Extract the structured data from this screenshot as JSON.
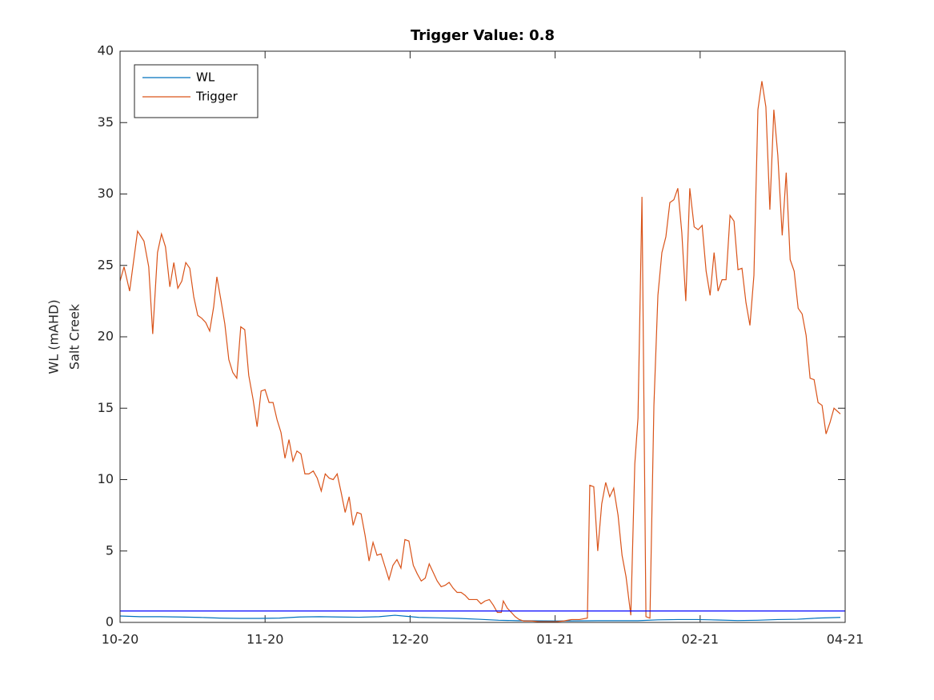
{
  "chart_data": {
    "type": "line",
    "title": "Trigger Value: 0.8",
    "ylabel": [
      "WL (mAHD)",
      "Salt Creek"
    ],
    "xlim": [
      0,
      182
    ],
    "xticks": [
      {
        "value": 0,
        "label": "10-20"
      },
      {
        "value": 36.4,
        "label": "11-20"
      },
      {
        "value": 72.8,
        "label": "12-20"
      },
      {
        "value": 109.2,
        "label": "01-21"
      },
      {
        "value": 145.6,
        "label": "02-21"
      },
      {
        "value": 182,
        "label": "04-21"
      }
    ],
    "ylim": [
      0,
      40
    ],
    "yticks": [
      0,
      5,
      10,
      15,
      20,
      25,
      30,
      35,
      40
    ],
    "grid": false,
    "legend": "top-left",
    "threshold": {
      "value": 0.8,
      "color": "#0000ff"
    },
    "series": [
      {
        "name": "WL",
        "color": "#0072bd",
        "x": [
          0,
          5,
          10,
          15,
          20,
          25,
          30,
          35,
          40,
          45,
          50,
          55,
          60,
          65,
          69,
          75,
          80,
          85,
          90,
          95,
          100,
          110,
          120,
          130,
          135,
          140,
          145,
          150,
          155,
          160,
          165,
          170,
          175,
          180.8
        ],
        "values": [
          0.45,
          0.4,
          0.4,
          0.38,
          0.35,
          0.3,
          0.28,
          0.28,
          0.3,
          0.38,
          0.4,
          0.38,
          0.36,
          0.4,
          0.5,
          0.35,
          0.32,
          0.28,
          0.22,
          0.15,
          0.12,
          0.1,
          0.12,
          0.12,
          0.18,
          0.2,
          0.2,
          0.17,
          0.13,
          0.15,
          0.2,
          0.22,
          0.3,
          0.35
        ]
      },
      {
        "name": "Trigger",
        "color": "#d95319",
        "x": [
          0,
          1,
          2.4,
          4.4,
          6,
          7.2,
          8.2,
          9.4,
          10.4,
          11.4,
          12.5,
          13.5,
          14.5,
          15.5,
          16.5,
          17.5,
          18.5,
          19.5,
          20.5,
          21.5,
          22.5,
          23.5,
          24.3,
          25.3,
          26.3,
          27.3,
          28.3,
          29.3,
          30.3,
          31.3,
          32.3,
          33.4,
          34.4,
          35.4,
          36.4,
          37.4,
          38.4,
          39.4,
          40.4,
          41.4,
          42.4,
          43.4,
          44.4,
          45.4,
          46.4,
          47.4,
          48.5,
          49.5,
          50.5,
          51.5,
          52.5,
          53.5,
          54.5,
          55.5,
          56.5,
          57.5,
          58.5,
          59.5,
          60.5,
          61.5,
          62.5,
          63.5,
          64.5,
          65.5,
          66.5,
          67.5,
          68.5,
          69.5,
          70.5,
          71.5,
          72.5,
          73.6,
          74.6,
          75.6,
          76.6,
          77.6,
          78.6,
          79.6,
          80.6,
          81.6,
          82.6,
          83.6,
          84.6,
          85.6,
          86.6,
          87.6,
          88.6,
          89.6,
          90.6,
          91.6,
          92.7,
          93.7,
          94.7,
          95.7,
          96.2,
          97.2,
          98.2,
          99.2,
          100.2,
          101.3,
          103.3,
          105.3,
          107.3,
          109.3,
          111.3,
          113.3,
          115.3,
          117.3,
          117.9,
          118.9,
          119.9,
          120.9,
          121.9,
          122.9,
          123.9,
          125,
          126,
          127,
          128.2,
          129.2,
          130,
          131,
          132,
          133,
          134,
          135,
          136,
          137,
          138,
          139,
          140,
          141,
          142,
          143,
          144.1,
          145.1,
          146.1,
          147.1,
          148.1,
          149.1,
          150.1,
          151.1,
          152.1,
          153.1,
          154.1,
          155.1,
          156.1,
          157.1,
          158.1,
          159.1,
          160.1,
          161.1,
          162.1,
          163.1,
          164.1,
          165.1,
          166.2,
          167.2,
          168.2,
          169.2,
          170.2,
          171.2,
          172.2,
          173.2,
          174.2,
          175.2,
          176.2,
          177.2,
          178.2,
          179.2,
          180.8
        ],
        "values": [
          23.9,
          24.9,
          23.2,
          27.4,
          26.7,
          24.9,
          20.2,
          25.9,
          27.2,
          26.3,
          23.5,
          25.2,
          23.4,
          23.9,
          25.2,
          24.8,
          22.8,
          21.5,
          21.3,
          21.0,
          20.4,
          22.1,
          24.2,
          22.6,
          20.9,
          18.4,
          17.5,
          17.1,
          20.7,
          20.5,
          17.3,
          15.6,
          13.7,
          16.2,
          16.3,
          15.4,
          15.4,
          14.2,
          13.3,
          11.5,
          12.8,
          11.3,
          12.0,
          11.8,
          10.4,
          10.4,
          10.6,
          10.1,
          9.2,
          10.4,
          10.1,
          10.0,
          10.4,
          9.1,
          7.7,
          8.8,
          6.8,
          7.7,
          7.6,
          6.1,
          4.3,
          5.6,
          4.7,
          4.8,
          3.9,
          3.0,
          4.0,
          4.4,
          3.8,
          5.8,
          5.7,
          4.0,
          3.4,
          2.9,
          3.1,
          4.1,
          3.5,
          2.9,
          2.5,
          2.6,
          2.8,
          2.4,
          2.1,
          2.1,
          1.9,
          1.6,
          1.6,
          1.6,
          1.3,
          1.5,
          1.6,
          1.2,
          0.7,
          0.7,
          1.5,
          1.0,
          0.7,
          0.4,
          0.2,
          0.1,
          0.1,
          0.05,
          0.05,
          0.05,
          0.1,
          0.2,
          0.2,
          0.3,
          9.6,
          9.5,
          5.0,
          8.3,
          9.8,
          8.8,
          9.4,
          7.5,
          4.7,
          3.2,
          0.5,
          11.1,
          14.3,
          29.8,
          0.4,
          0.3,
          15.2,
          22.9,
          25.9,
          27.0,
          29.4,
          29.6,
          30.4,
          27.3,
          22.5,
          30.4,
          27.7,
          27.5,
          27.8,
          24.6,
          22.9,
          25.9,
          23.2,
          24.0,
          24.0,
          28.5,
          28.1,
          24.7,
          24.8,
          22.4,
          20.8,
          24.3,
          35.9,
          37.9,
          36.1,
          28.9,
          35.9,
          32.7,
          27.1,
          31.5,
          25.4,
          24.6,
          22.0,
          21.6,
          20.1,
          17.1,
          17.0,
          15.4,
          15.2,
          13.2,
          14.0,
          15.0,
          14.6
        ]
      }
    ]
  }
}
